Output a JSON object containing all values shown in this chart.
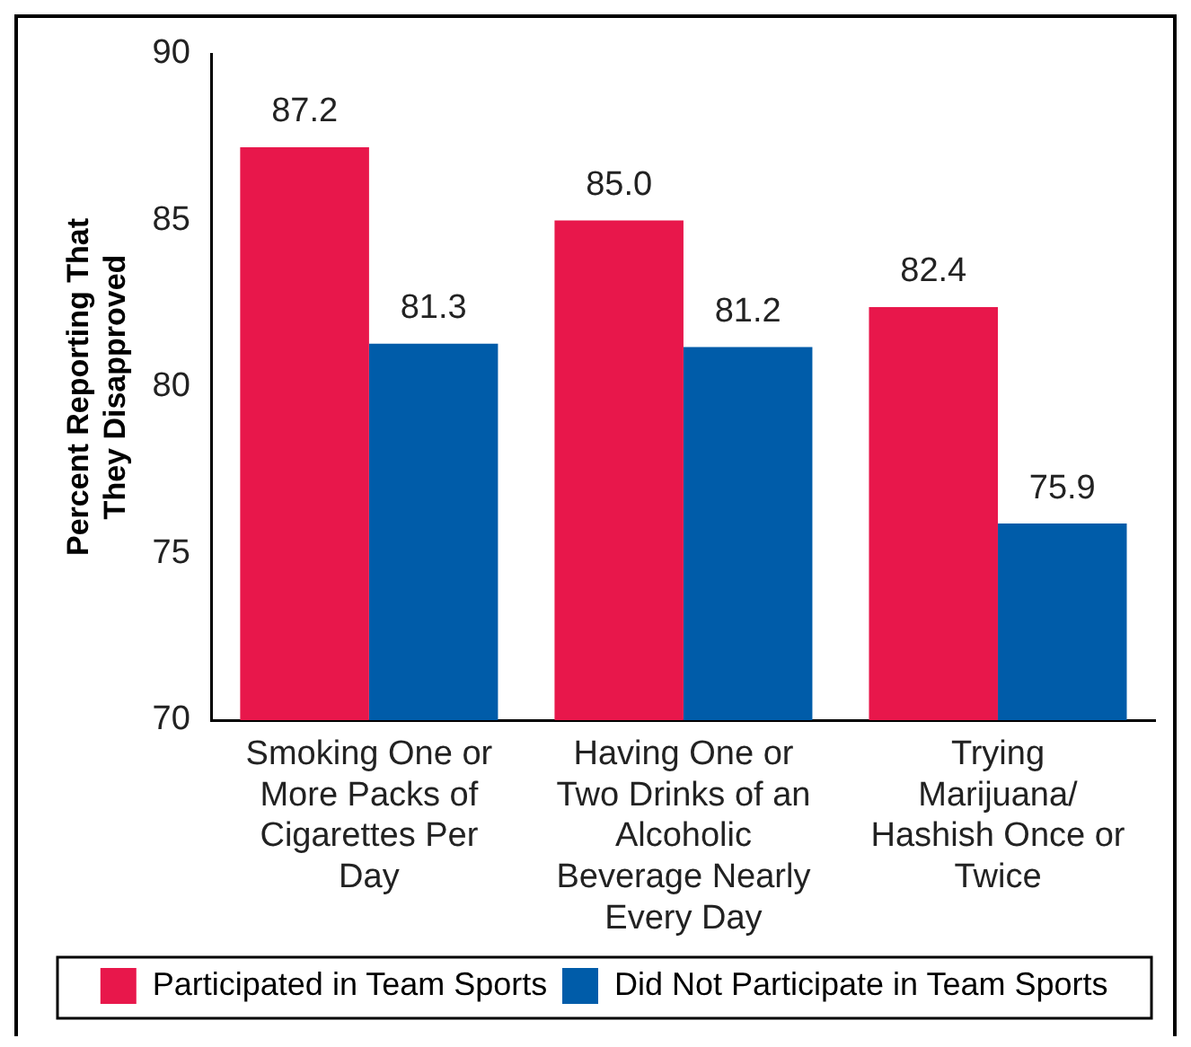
{
  "chart_data": {
    "type": "bar",
    "ylabel": "Percent Reporting That They Disapproved",
    "categories": [
      "Smoking One or More Packs of Cigarettes Per Day",
      "Having One or Two Drinks of an Alcoholic Beverage Nearly Every Day",
      "Trying Marijuana/ Hashish Once or Twice"
    ],
    "series": [
      {
        "name": "Participated in Team Sports",
        "color": "#e8174b",
        "values": [
          87.2,
          85.0,
          82.4
        ],
        "value_labels": [
          "87.2",
          "85.0",
          "82.4"
        ]
      },
      {
        "name": "Did Not Participate in Team Sports",
        "color": "#005ca9",
        "values": [
          81.3,
          81.2,
          75.9
        ],
        "value_labels": [
          "81.3",
          "81.2",
          "75.9"
        ]
      }
    ],
    "ylim": [
      70,
      90
    ],
    "yticks": [
      70,
      75,
      80,
      85,
      90
    ],
    "grid": false,
    "legend": "bottom"
  }
}
